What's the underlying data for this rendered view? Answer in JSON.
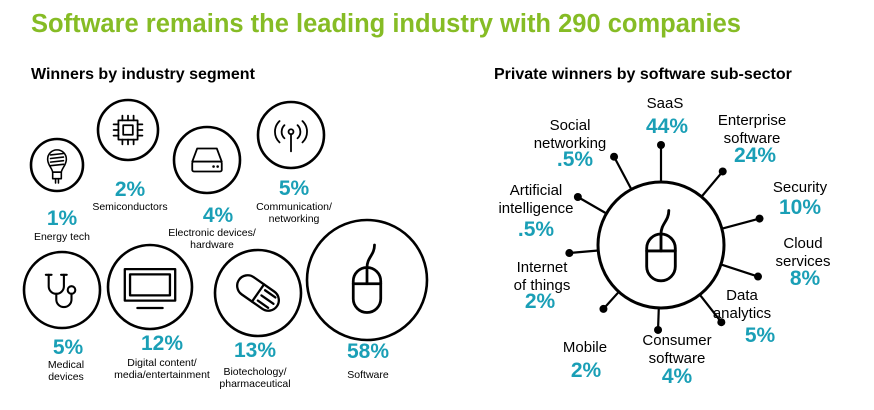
{
  "title": "Software remains the leading industry with 290 companies",
  "colors": {
    "title": "#86bc25",
    "accent": "#1a9fb6",
    "stroke": "#000000",
    "text": "#000000"
  },
  "chart_data": [
    {
      "type": "bubble",
      "heading": "Winners by industry segment",
      "series": [
        {
          "label": [
            "Energy tech"
          ],
          "percent": "1%",
          "value": 1,
          "icon": "light-bulb-icon"
        },
        {
          "label": [
            "Semiconductors"
          ],
          "percent": "2%",
          "value": 2,
          "icon": "chip-icon"
        },
        {
          "label": [
            "Electronic devices/",
            "hardware"
          ],
          "percent": "4%",
          "value": 4,
          "icon": "hard-drive-icon"
        },
        {
          "label": [
            "Communication/",
            "networking"
          ],
          "percent": "5%",
          "value": 5,
          "icon": "antenna-icon"
        },
        {
          "label": [
            "Medical",
            "devices"
          ],
          "percent": "5%",
          "value": 5,
          "icon": "stethoscope-icon"
        },
        {
          "label": [
            "Digital content/",
            "media/entertainment"
          ],
          "percent": "12%",
          "value": 12,
          "icon": "monitor-icon"
        },
        {
          "label": [
            "Biotechology/",
            "pharmaceutical"
          ],
          "percent": "13%",
          "value": 13,
          "icon": "pill-icon"
        },
        {
          "label": [
            "Software"
          ],
          "percent": "58%",
          "value": 58,
          "icon": "mouse-icon"
        }
      ]
    },
    {
      "type": "radial",
      "heading": "Private winners by software sub-sector",
      "center_icon": "mouse-icon",
      "series": [
        {
          "label": [
            "SaaS"
          ],
          "percent": "44%",
          "value": 44
        },
        {
          "label": [
            "Enterprise",
            "software"
          ],
          "percent": "24%",
          "value": 24
        },
        {
          "label": [
            "Security"
          ],
          "percent": "10%",
          "value": 10
        },
        {
          "label": [
            "Cloud",
            "services"
          ],
          "percent": "8%",
          "value": 8
        },
        {
          "label": [
            "Data",
            "analytics"
          ],
          "percent": "5%",
          "value": 5
        },
        {
          "label": [
            "Consumer",
            "software"
          ],
          "percent": "4%",
          "value": 4
        },
        {
          "label": [
            "Mobile"
          ],
          "percent": "2%",
          "value": 2
        },
        {
          "label": [
            "Internet",
            "of things"
          ],
          "percent": "2%",
          "value": 2
        },
        {
          "label": [
            "Artificial",
            "intelligence"
          ],
          "percent": ".5%",
          "value": 0.5
        },
        {
          "label": [
            "Social",
            "networking"
          ],
          "percent": ".5%",
          "value": 0.5
        }
      ]
    }
  ]
}
